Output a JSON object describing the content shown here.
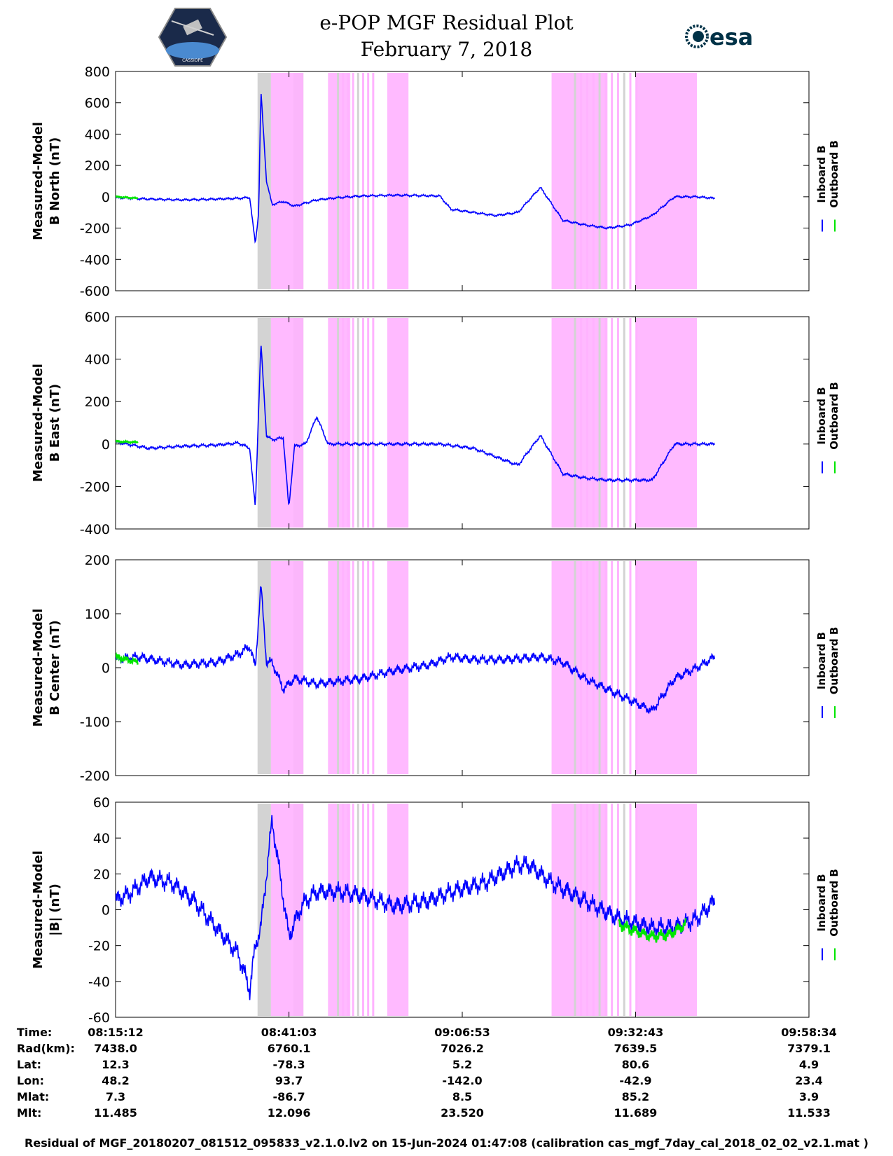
{
  "header": {
    "title_line1": "e-POP MGF Residual Plot",
    "title_line2": "February 7, 2018",
    "logo_left_text": "CASSIOPE",
    "logo_right_text": "esa"
  },
  "colors": {
    "inboard": "#0000ff",
    "outboard": "#00e600",
    "shade_gray": "#d3d3d3",
    "shade_pink": "#ffb3ff"
  },
  "legend": {
    "inboard": "Inboard B",
    "outboard": "Outboard B"
  },
  "chart_data": [
    {
      "type": "line",
      "ylabel_line1": "Measured-Model",
      "ylabel_line2": "B North (nT)",
      "ylim": [
        -600,
        800
      ],
      "yticks": [
        -600,
        -400,
        -200,
        0,
        200,
        400,
        600,
        800
      ],
      "series": [
        {
          "name": "Inboard B",
          "x": [
            0,
            300,
            600,
            900,
            1100,
            1200,
            1250,
            1280,
            1300,
            1350,
            1400,
            1500,
            1600,
            1700,
            1800,
            2000,
            2200,
            2500,
            2700,
            2900,
            3000,
            3200,
            3400,
            3600,
            3800,
            4000,
            4200,
            4400,
            4600,
            4800,
            5000,
            5200,
            5359
          ],
          "y": [
            -5,
            -15,
            -20,
            -15,
            -10,
            -5,
            -300,
            -100,
            680,
            100,
            -50,
            -30,
            -60,
            -40,
            -20,
            -5,
            5,
            10,
            8,
            5,
            -80,
            -100,
            -120,
            -100,
            60,
            -150,
            -180,
            -200,
            -180,
            -120,
            0,
            0,
            -10
          ]
        },
        {
          "name": "Outboard B",
          "x": [
            0,
            100,
            200
          ],
          "y": [
            0,
            -5,
            -10
          ]
        }
      ]
    },
    {
      "type": "line",
      "ylabel_line1": "Measured-Model",
      "ylabel_line2": "B East (nT)",
      "ylim": [
        -400,
        600
      ],
      "yticks": [
        -400,
        -200,
        0,
        200,
        400,
        600
      ],
      "series": [
        {
          "name": "Inboard B",
          "x": [
            0,
            300,
            600,
            900,
            1100,
            1200,
            1250,
            1300,
            1350,
            1400,
            1500,
            1550,
            1600,
            1700,
            1800,
            1900,
            2000,
            2300,
            2600,
            2900,
            3200,
            3400,
            3600,
            3800,
            4000,
            4200,
            4400,
            4600,
            4800,
            5000,
            5200,
            5359
          ],
          "y": [
            10,
            -20,
            -10,
            -5,
            5,
            -20,
            -300,
            480,
            40,
            20,
            30,
            -300,
            -10,
            0,
            130,
            0,
            0,
            0,
            0,
            0,
            -20,
            -60,
            -100,
            40,
            -140,
            -160,
            -170,
            -170,
            -170,
            0,
            0,
            0
          ]
        },
        {
          "name": "Outboard B",
          "x": [
            0,
            100,
            200
          ],
          "y": [
            12,
            10,
            8
          ]
        }
      ]
    },
    {
      "type": "line",
      "ylabel_line1": "Measured-Model",
      "ylabel_line2": "B Center (nT)",
      "ylim": [
        -200,
        200
      ],
      "yticks": [
        -200,
        -100,
        0,
        100
      ],
      "series": [
        {
          "name": "Inboard B",
          "x": [
            0,
            200,
            600,
            900,
            1100,
            1200,
            1250,
            1300,
            1350,
            1400,
            1500,
            1600,
            1800,
            2000,
            2200,
            2500,
            2800,
            3000,
            3200,
            3500,
            3800,
            4000,
            4200,
            4400,
            4600,
            4800,
            5000,
            5200,
            5359
          ],
          "y": [
            15,
            20,
            5,
            10,
            25,
            40,
            0,
            155,
            10,
            10,
            -40,
            -20,
            -30,
            -25,
            -20,
            -5,
            5,
            20,
            15,
            15,
            20,
            10,
            -20,
            -40,
            -60,
            -80,
            -20,
            0,
            20
          ]
        },
        {
          "name": "Outboard B",
          "x": [
            0,
            100,
            200
          ],
          "y": [
            20,
            15,
            10
          ]
        }
      ]
    },
    {
      "type": "line",
      "ylabel_line1": "Measured-Model",
      "ylabel_line2": "|B| (nT)",
      "ylim": [
        -60,
        60
      ],
      "yticks": [
        -60,
        -40,
        -20,
        0,
        20,
        40,
        60
      ],
      "series": [
        {
          "name": "Inboard B",
          "x": [
            0,
            150,
            300,
            500,
            700,
            900,
            1100,
            1200,
            1250,
            1300,
            1400,
            1550,
            1650,
            1700,
            1800,
            2000,
            2200,
            2500,
            2800,
            3000,
            3300,
            3600,
            3700,
            3900,
            4200,
            4500,
            4800,
            5000,
            5200,
            5359
          ],
          "y": [
            5,
            10,
            18,
            15,
            5,
            -10,
            -25,
            -45,
            -20,
            -10,
            50,
            -15,
            0,
            5,
            10,
            10,
            8,
            2,
            5,
            10,
            15,
            25,
            25,
            15,
            5,
            -5,
            -10,
            -10,
            -5,
            5
          ]
        },
        {
          "name": "Outboard B",
          "x": [
            4500,
            4650,
            4800,
            4950,
            5100
          ],
          "y": [
            -8,
            -12,
            -15,
            -14,
            -8
          ]
        }
      ]
    }
  ],
  "time_axis": {
    "tick_seconds": [
      0,
      1551,
      3101,
      4651,
      6202
    ]
  },
  "table": {
    "labels": [
      "Time:",
      "Rad(km):",
      "Lat:",
      "Lon:",
      "Mlat:",
      "Mlt:"
    ],
    "columns": [
      [
        "08:15:12",
        "7438.0",
        "12.3",
        "48.2",
        "7.3",
        "11.485"
      ],
      [
        "08:41:03",
        "6760.1",
        "-78.3",
        "93.7",
        "-86.7",
        "12.096"
      ],
      [
        "09:06:53",
        "7026.2",
        "5.2",
        "-142.0",
        "8.5",
        "23.520"
      ],
      [
        "09:32:43",
        "7639.5",
        "80.6",
        "-42.9",
        "85.2",
        "11.689"
      ],
      [
        "09:58:34",
        "7379.1",
        "4.9",
        "23.4",
        "3.9",
        "11.533"
      ]
    ]
  },
  "footer": "Residual of MGF_20180207_081512_095833_v2.1.0.lv2 on 15-Jun-2024 01:47:08 (calibration cas_mgf_7day_cal_2018_02_02_v2.1.mat )"
}
